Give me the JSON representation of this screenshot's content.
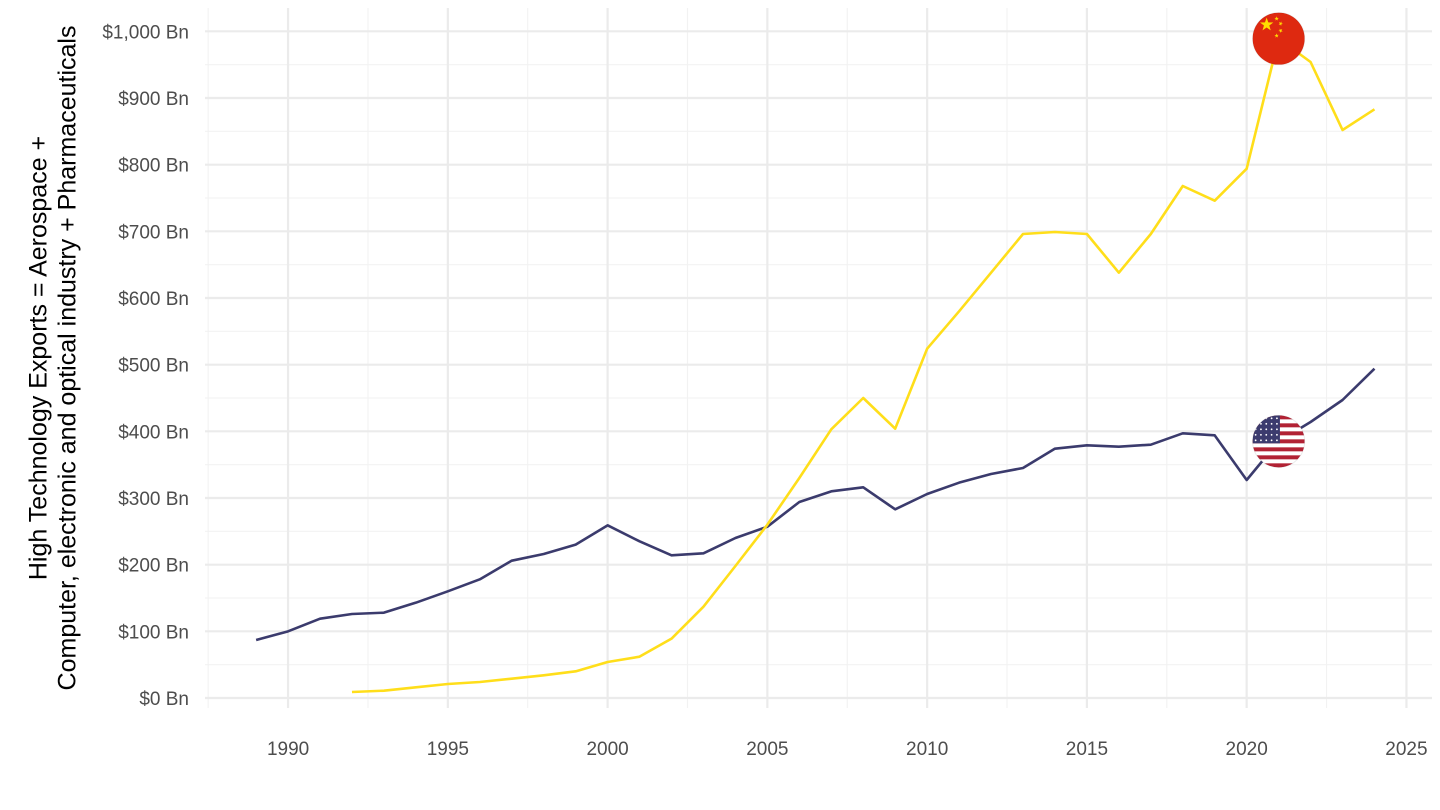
{
  "chart_data": {
    "type": "line",
    "title": "",
    "xlabel": "",
    "ylabel": "High Technology Exports = Aerospace +\nComputer, electronic and optical industry + Pharmaceuticals",
    "xlim": [
      1987.4,
      2025.8
    ],
    "ylim": [
      -15,
      1035
    ],
    "x_ticks": [
      1990,
      1995,
      2000,
      2005,
      2010,
      2015,
      2020,
      2025
    ],
    "x_tick_labels": [
      "1990",
      "1995",
      "2000",
      "2005",
      "2010",
      "2015",
      "2020",
      "2025"
    ],
    "y_ticks": [
      0,
      100,
      200,
      300,
      400,
      500,
      600,
      700,
      800,
      900,
      1000
    ],
    "y_tick_labels": [
      "$0 Bn",
      "$100 Bn",
      "$200 Bn",
      "$300 Bn",
      "$400 Bn",
      "$500 Bn",
      "$600 Bn",
      "$700 Bn",
      "$800 Bn",
      "$900 Bn",
      "$1,000 Bn"
    ],
    "grid": true,
    "legend": "none",
    "series": [
      {
        "flag": "us-flag-icon",
        "color": "#3b3b6d",
        "flag_at": 2021,
        "x": [
          1989,
          1990,
          1991,
          1992,
          1993,
          1994,
          1995,
          1996,
          1997,
          1998,
          1999,
          2000,
          2001,
          2002,
          2003,
          2004,
          2005,
          2006,
          2007,
          2008,
          2009,
          2010,
          2011,
          2012,
          2013,
          2014,
          2015,
          2016,
          2017,
          2018,
          2019,
          2020,
          2021,
          2022,
          2023,
          2024
        ],
        "values": [
          87,
          100,
          119,
          126,
          128,
          143,
          160,
          178,
          206,
          216,
          230,
          259,
          235,
          214,
          217,
          240,
          257,
          294,
          310,
          316,
          283,
          306,
          323,
          336,
          345,
          374,
          379,
          377,
          380,
          397,
          394,
          327,
          385,
          414,
          447,
          494
        ]
      },
      {
        "flag": "china-flag-icon",
        "color": "#ffde1a",
        "flag_at": 2021,
        "x": [
          1992,
          1993,
          1994,
          1995,
          1996,
          1997,
          1998,
          1999,
          2000,
          2001,
          2002,
          2003,
          2004,
          2005,
          2006,
          2007,
          2008,
          2009,
          2010,
          2011,
          2012,
          2013,
          2014,
          2015,
          2016,
          2017,
          2018,
          2019,
          2020,
          2021,
          2022,
          2023,
          2024
        ],
        "values": [
          9,
          11,
          16,
          21,
          24,
          29,
          34,
          40,
          54,
          62,
          89,
          137,
          198,
          260,
          330,
          403,
          450,
          404,
          524,
          580,
          638,
          696,
          699,
          696,
          638,
          696,
          768,
          746,
          794,
          989,
          954,
          852,
          883
        ]
      }
    ]
  }
}
